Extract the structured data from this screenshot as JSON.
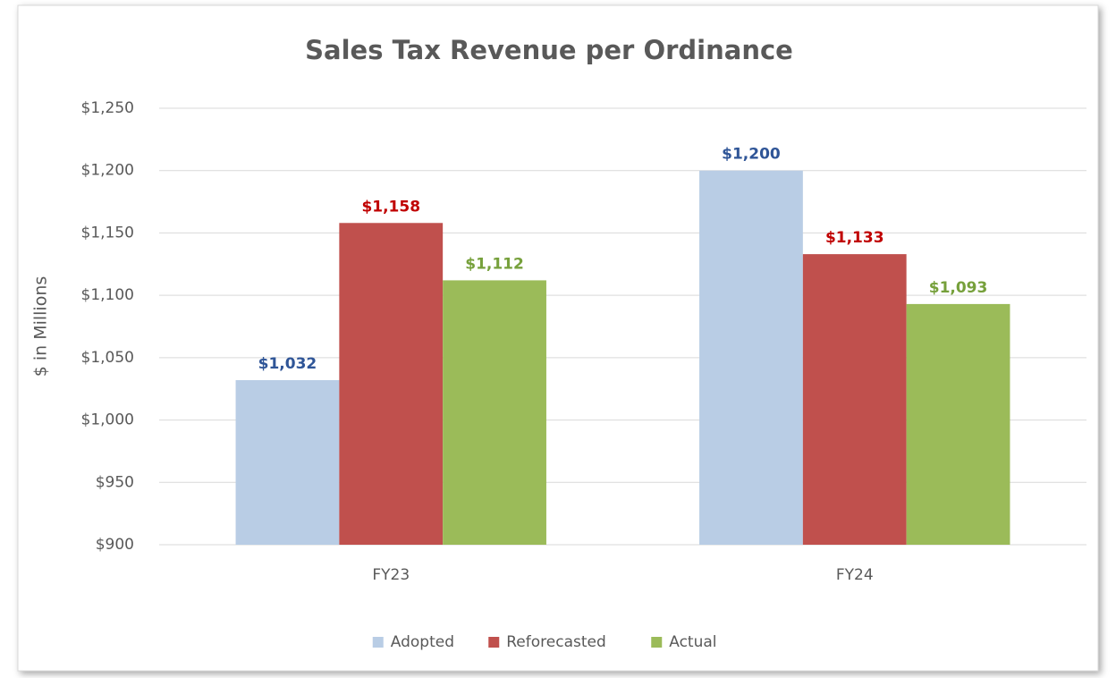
{
  "chart_data": {
    "type": "bar",
    "title": "Sales Tax Revenue per Ordinance",
    "y_label": "$ in Millions",
    "categories": [
      "FY23",
      "FY24"
    ],
    "series": [
      {
        "name": "Adopted",
        "color": "#b9cde5",
        "label_color": "#2f5597",
        "values": [
          1032,
          1200
        ],
        "value_labels": [
          "$1,032",
          "$1,200"
        ]
      },
      {
        "name": "Reforecasted",
        "color": "#c0504d",
        "label_color": "#c00000",
        "values": [
          1158,
          1133
        ],
        "value_labels": [
          "$1,158",
          "$1,133"
        ]
      },
      {
        "name": "Actual",
        "color": "#9bbb59",
        "label_color": "#76a03b",
        "values": [
          1112,
          1093
        ],
        "value_labels": [
          "$1,112",
          "$1,093"
        ]
      }
    ],
    "ylim": [
      900,
      1250
    ],
    "yticks": [
      {
        "value": 900,
        "label": "$900"
      },
      {
        "value": 950,
        "label": "$950"
      },
      {
        "value": 1000,
        "label": "$1,000"
      },
      {
        "value": 1050,
        "label": "$1,050"
      },
      {
        "value": 1100,
        "label": "$1,100"
      },
      {
        "value": 1150,
        "label": "$1,150"
      },
      {
        "value": 1200,
        "label": "$1,200"
      },
      {
        "value": 1250,
        "label": "$1,250"
      }
    ],
    "grid": true,
    "legend": "bottom"
  }
}
